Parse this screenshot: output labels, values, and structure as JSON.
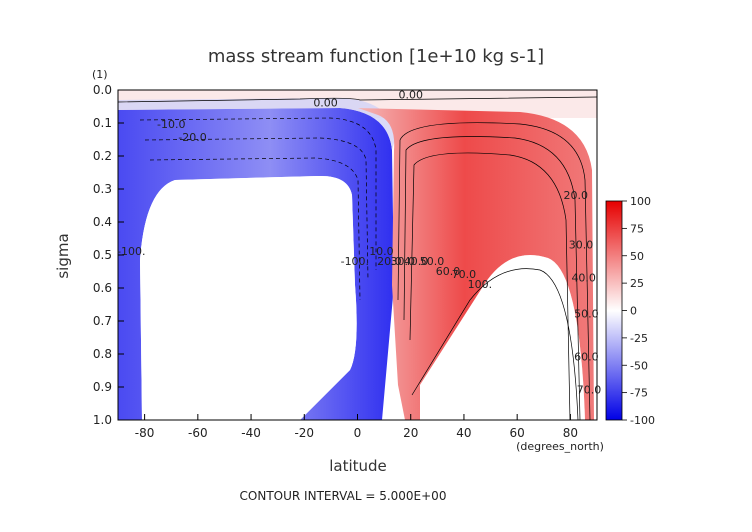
{
  "chart_data": {
    "type": "heatmap",
    "title": "mass stream function [1e+10 kg s-1]",
    "xlabel": "latitude",
    "xunits": "(degrees_north)",
    "ylabel": "sigma",
    "yunits": "(1)",
    "xlim": [
      -90,
      90
    ],
    "ylim": [
      0.0,
      1.0
    ],
    "y_inverted": true,
    "x_ticks": [
      -80,
      -60,
      -40,
      -20,
      0,
      20,
      40,
      60,
      80
    ],
    "y_ticks": [
      "0.0",
      "0.1",
      "0.2",
      "0.3",
      "0.4",
      "0.5",
      "0.6",
      "0.7",
      "0.8",
      "0.9",
      "1.0"
    ],
    "colorbar": {
      "range": [
        -100,
        100
      ],
      "ticks": [
        "100",
        "75",
        "50",
        "25",
        "0",
        "-25",
        "-50",
        "-75",
        "-100"
      ],
      "colors": [
        "#0000e6",
        "#ffffff",
        "#e60000"
      ],
      "placement": "right"
    },
    "contour_interval": 5.0,
    "contour_labels": [
      {
        "text": "0.00",
        "lat": -12,
        "sigma": 0.05
      },
      {
        "text": "0.00",
        "lat": 20,
        "sigma": 0.025
      },
      {
        "text": "-10.0",
        "lat": -70,
        "sigma": 0.115
      },
      {
        "text": "-20.0",
        "lat": -62,
        "sigma": 0.155
      },
      {
        "text": "10.0",
        "lat": 9,
        "sigma": 0.5
      },
      {
        "text": "20.0",
        "lat": 12,
        "sigma": 0.53
      },
      {
        "text": "30.0",
        "lat": 17,
        "sigma": 0.53
      },
      {
        "text": "40.0",
        "lat": 22,
        "sigma": 0.53
      },
      {
        "text": "50.0",
        "lat": 28,
        "sigma": 0.53
      },
      {
        "text": "60.0",
        "lat": 34,
        "sigma": 0.56
      },
      {
        "text": "70.0",
        "lat": 40,
        "sigma": 0.57
      },
      {
        "text": "100.",
        "lat": 46,
        "sigma": 0.6
      },
      {
        "text": "20.0",
        "lat": 82,
        "sigma": 0.33
      },
      {
        "text": "30.0",
        "lat": 84,
        "sigma": 0.48
      },
      {
        "text": "40.0",
        "lat": 85,
        "sigma": 0.58
      },
      {
        "text": "50.0",
        "lat": 86,
        "sigma": 0.69
      },
      {
        "text": "60.0",
        "lat": 86,
        "sigma": 0.82
      },
      {
        "text": "70.0",
        "lat": 87,
        "sigma": 0.92
      },
      {
        "text": "-100.",
        "lat": -85,
        "sigma": 0.5
      },
      {
        "text": "-100.",
        "lat": -1,
        "sigma": 0.53
      }
    ],
    "footer": "CONTOUR INTERVAL = 5.000E+00"
  }
}
